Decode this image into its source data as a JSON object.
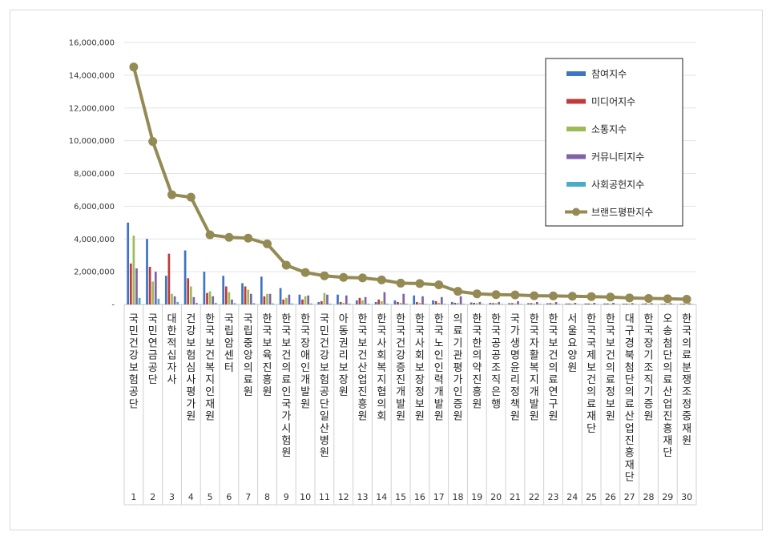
{
  "chart_data": {
    "type": "bar",
    "title": "",
    "xlabel": "",
    "ylabel": "",
    "ylim": [
      0,
      16000000
    ],
    "yticks": [
      "-",
      "2,000,000",
      "4,000,000",
      "6,000,000",
      "8,000,000",
      "10,000,000",
      "12,000,000",
      "14,000,000",
      "16,000,000"
    ],
    "grid": true,
    "legend_position": "top-right",
    "ranks": [
      "1",
      "2",
      "3",
      "4",
      "5",
      "6",
      "7",
      "8",
      "9",
      "10",
      "11",
      "12",
      "13",
      "14",
      "15",
      "16",
      "17",
      "18",
      "19",
      "20",
      "21",
      "22",
      "23",
      "24",
      "25",
      "26",
      "27",
      "28",
      "29",
      "30"
    ],
    "categories": [
      "국민건강보험공단",
      "국민연금공단",
      "대한적십자사",
      "건강보험심사평가원",
      "한국보건복지인재원",
      "국립암센터",
      "국립중앙의료원",
      "한국보육진흥원",
      "한국보건의료인국가시험원",
      "한국장애인개발원",
      "국민건강보험공단 일산병원",
      "아동권리보장원",
      "한국보건산업진흥원",
      "한국사회복지협의회",
      "한국건강증진개발원",
      "한국사회보장정보원",
      "한국노인인력개발원",
      "의료기관평가인증원",
      "한국한의약진흥원",
      "한국공공조직은행",
      "국가생명윤리정책원",
      "한국자활복지개발원",
      "한국보건의료연구원",
      "서울요양원",
      "한국국제보건의료재단",
      "한국보건의료정보원",
      "대구경북첨단의료산업진흥재단",
      "한국장기조직기증원",
      "오송첨단의료산업진흥재단",
      "한국의료분쟁조정중재원"
    ],
    "series": [
      {
        "name": "참여지수",
        "color": "#3e74c0",
        "values": [
          5000000,
          4000000,
          1750000,
          3300000,
          2000000,
          1750000,
          1300000,
          1700000,
          1000000,
          600000,
          150000,
          600000,
          250000,
          150000,
          250000,
          550000,
          250000,
          150000,
          120000,
          100000,
          80000,
          80000,
          70000,
          60000,
          60000,
          60000,
          50000,
          50000,
          40000,
          40000
        ]
      },
      {
        "name": "미디어지수",
        "color": "#c0393b",
        "values": [
          2500000,
          2300000,
          3100000,
          1600000,
          700000,
          1100000,
          1100000,
          500000,
          300000,
          300000,
          200000,
          150000,
          400000,
          300000,
          150000,
          150000,
          200000,
          100000,
          100000,
          80000,
          80000,
          80000,
          80000,
          60000,
          60000,
          60000,
          50000,
          60000,
          50000,
          50000
        ]
      },
      {
        "name": "소통지수",
        "color": "#9bbb59",
        "values": [
          4200000,
          1400000,
          650000,
          1100000,
          800000,
          750000,
          900000,
          650000,
          400000,
          500000,
          700000,
          100000,
          250000,
          200000,
          100000,
          100000,
          100000,
          80000,
          80000,
          80000,
          60000,
          60000,
          60000,
          50000,
          50000,
          50000,
          40000,
          40000,
          40000,
          30000
        ]
      },
      {
        "name": "커뮤니티지수",
        "color": "#7f63a8",
        "values": [
          2200000,
          2000000,
          500000,
          450000,
          500000,
          300000,
          650000,
          650000,
          600000,
          550000,
          600000,
          550000,
          450000,
          750000,
          650000,
          500000,
          450000,
          500000,
          150000,
          150000,
          200000,
          150000,
          150000,
          100000,
          100000,
          100000,
          80000,
          80000,
          80000,
          70000
        ]
      },
      {
        "name": "사회공헌지수",
        "color": "#4bacc6",
        "values": [
          400000,
          350000,
          150000,
          100000,
          100000,
          80000,
          80000,
          60000,
          60000,
          60000,
          50000,
          50000,
          50000,
          50000,
          50000,
          40000,
          40000,
          40000,
          30000,
          30000,
          30000,
          30000,
          30000,
          20000,
          20000,
          20000,
          20000,
          20000,
          20000,
          20000
        ]
      }
    ],
    "line": {
      "name": "브랜드평판지수",
      "color": "#948a54",
      "values": [
        14500000,
        9950000,
        6700000,
        6550000,
        4250000,
        4100000,
        4050000,
        3700000,
        2400000,
        1950000,
        1750000,
        1650000,
        1620000,
        1500000,
        1300000,
        1280000,
        1200000,
        800000,
        650000,
        600000,
        580000,
        530000,
        520000,
        500000,
        480000,
        450000,
        400000,
        370000,
        350000,
        320000
      ]
    }
  }
}
